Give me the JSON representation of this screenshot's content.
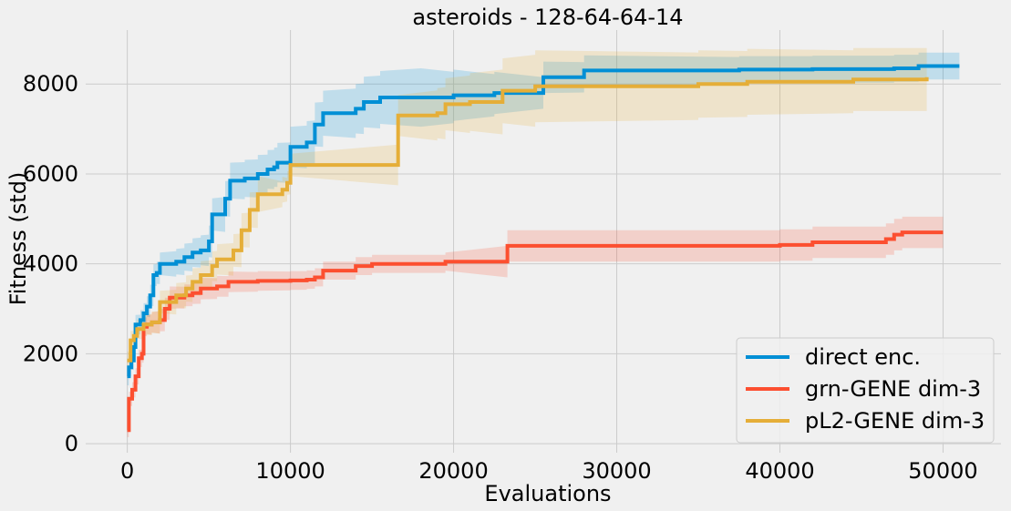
{
  "chart_data": {
    "type": "line",
    "title": "asteroids - 128-64-64-14",
    "xlabel": "Evaluations",
    "ylabel": "Fitness (std)",
    "xlim": [
      -2550,
      53550
    ],
    "ylim": [
      -200,
      9200
    ],
    "xticks": [
      0,
      10000,
      20000,
      30000,
      40000,
      50000
    ],
    "xtick_labels": [
      "0",
      "10000",
      "20000",
      "30000",
      "40000",
      "50000"
    ],
    "yticks": [
      0,
      2000,
      4000,
      6000,
      8000
    ],
    "ytick_labels": [
      "0",
      "2000",
      "4000",
      "6000",
      "8000"
    ],
    "grid": true,
    "legend_position": "lower-right",
    "series": [
      {
        "name": "direct enc.",
        "color": "#008fd5",
        "points": [
          [
            0,
            1500
          ],
          [
            100,
            1700
          ],
          [
            250,
            1850
          ],
          [
            400,
            2150
          ],
          [
            500,
            2650
          ],
          [
            800,
            2750
          ],
          [
            1000,
            2900
          ],
          [
            1200,
            3050
          ],
          [
            1400,
            3300
          ],
          [
            1600,
            3750
          ],
          [
            1800,
            3800
          ],
          [
            2000,
            4000
          ],
          [
            3000,
            4050
          ],
          [
            3500,
            4150
          ],
          [
            4000,
            4250
          ],
          [
            4500,
            4300
          ],
          [
            5000,
            4500
          ],
          [
            5200,
            5100
          ],
          [
            6000,
            5450
          ],
          [
            6300,
            5850
          ],
          [
            7200,
            5900
          ],
          [
            8000,
            6000
          ],
          [
            8600,
            6100
          ],
          [
            9000,
            6150
          ],
          [
            9200,
            6250
          ],
          [
            10000,
            6600
          ],
          [
            11000,
            6700
          ],
          [
            11500,
            7100
          ],
          [
            12000,
            7350
          ],
          [
            14000,
            7450
          ],
          [
            14500,
            7600
          ],
          [
            15500,
            7700
          ],
          [
            18000,
            7700
          ],
          [
            20000,
            7750
          ],
          [
            22500,
            7800
          ],
          [
            25500,
            8150
          ],
          [
            28000,
            8300
          ],
          [
            37500,
            8320
          ],
          [
            42000,
            8330
          ],
          [
            47000,
            8350
          ],
          [
            48500,
            8400
          ],
          [
            51000,
            8400
          ]
        ],
        "std": [
          [
            0,
            200
          ],
          [
            2000,
            250
          ],
          [
            5000,
            350
          ],
          [
            6300,
            400
          ],
          [
            10000,
            450
          ],
          [
            12000,
            500
          ],
          [
            18000,
            650
          ],
          [
            25500,
            350
          ],
          [
            35000,
            300
          ],
          [
            51000,
            300
          ]
        ]
      },
      {
        "name": "grn-GENE dim-3",
        "color": "#fc4f30",
        "points": [
          [
            0,
            300
          ],
          [
            100,
            1000
          ],
          [
            300,
            1200
          ],
          [
            500,
            1500
          ],
          [
            700,
            1900
          ],
          [
            900,
            2000
          ],
          [
            1000,
            2600
          ],
          [
            1200,
            2650
          ],
          [
            1500,
            2700
          ],
          [
            2000,
            2750
          ],
          [
            2300,
            3000
          ],
          [
            2600,
            3250
          ],
          [
            3500,
            3300
          ],
          [
            4000,
            3350
          ],
          [
            4500,
            3450
          ],
          [
            5500,
            3500
          ],
          [
            6200,
            3600
          ],
          [
            8000,
            3620
          ],
          [
            10000,
            3630
          ],
          [
            11000,
            3650
          ],
          [
            11500,
            3700
          ],
          [
            12000,
            3850
          ],
          [
            14000,
            3950
          ],
          [
            15000,
            4000
          ],
          [
            18000,
            4000
          ],
          [
            19500,
            4050
          ],
          [
            23300,
            4400
          ],
          [
            40000,
            4420
          ],
          [
            42000,
            4480
          ],
          [
            46500,
            4550
          ],
          [
            47000,
            4650
          ],
          [
            47500,
            4700
          ],
          [
            50000,
            4700
          ]
        ],
        "std": [
          [
            0,
            150
          ],
          [
            2000,
            250
          ],
          [
            12000,
            200
          ],
          [
            20000,
            200
          ],
          [
            23300,
            350
          ],
          [
            47000,
            350
          ],
          [
            50000,
            350
          ]
        ]
      },
      {
        "name": "pL2-GENE dim-3",
        "color": "#e5ae38",
        "points": [
          [
            0,
            1850
          ],
          [
            200,
            2300
          ],
          [
            400,
            2400
          ],
          [
            600,
            2550
          ],
          [
            1000,
            2650
          ],
          [
            1500,
            2700
          ],
          [
            2000,
            3150
          ],
          [
            3000,
            3300
          ],
          [
            3600,
            3450
          ],
          [
            4000,
            3600
          ],
          [
            4500,
            3750
          ],
          [
            5200,
            3950
          ],
          [
            5500,
            4100
          ],
          [
            6500,
            4300
          ],
          [
            7000,
            4750
          ],
          [
            7500,
            5200
          ],
          [
            8000,
            5550
          ],
          [
            9500,
            5650
          ],
          [
            9800,
            5800
          ],
          [
            10000,
            6200
          ],
          [
            16500,
            6200
          ],
          [
            16600,
            7300
          ],
          [
            19000,
            7350
          ],
          [
            19500,
            7550
          ],
          [
            21000,
            7600
          ],
          [
            23000,
            7850
          ],
          [
            25000,
            7950
          ],
          [
            35000,
            8000
          ],
          [
            38000,
            8050
          ],
          [
            44500,
            8100
          ],
          [
            49000,
            8150
          ]
        ],
        "std": [
          [
            0,
            200
          ],
          [
            2000,
            250
          ],
          [
            8000,
            400
          ],
          [
            10000,
            250
          ],
          [
            16500,
            450
          ],
          [
            20000,
            600
          ],
          [
            25000,
            800
          ],
          [
            44500,
            700
          ],
          [
            49000,
            700
          ]
        ]
      }
    ]
  }
}
